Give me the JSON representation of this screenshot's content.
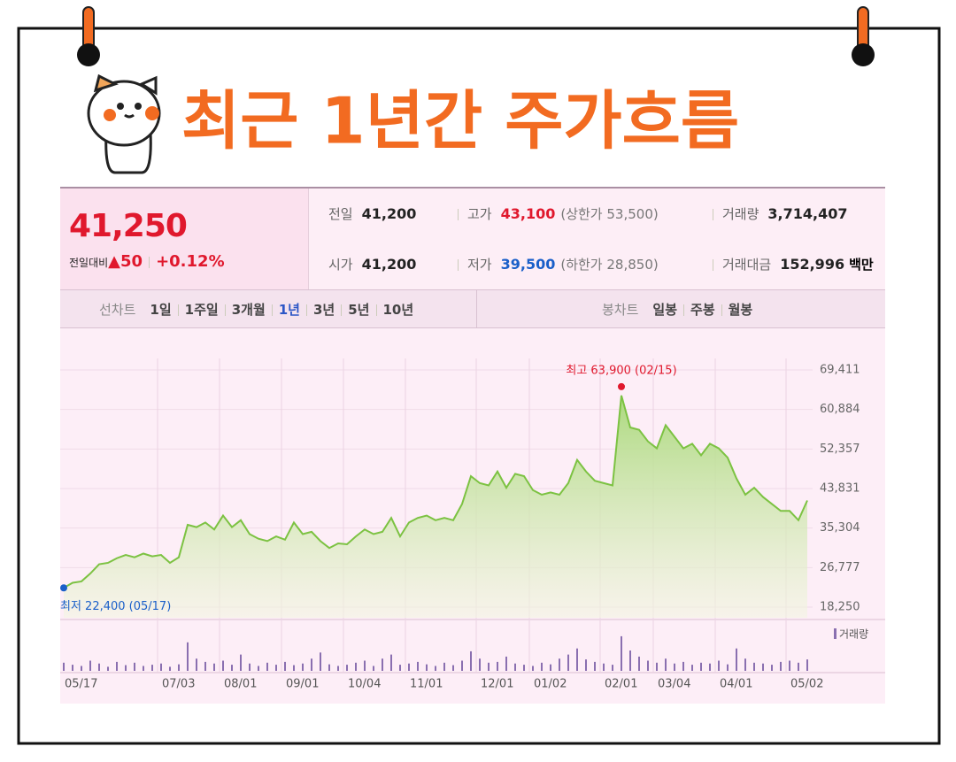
{
  "header": {
    "title": "최근 1년간 주가흐름"
  },
  "quote": {
    "price": "41,250",
    "change_label": "전일대비",
    "change": "▲50",
    "change_pct": "+0.12%",
    "stats": [
      {
        "label": "전일",
        "value": "41,200"
      },
      {
        "label": "고가",
        "value": "43,100",
        "note": "(상한가 53,500)",
        "color": "#e0182d"
      },
      {
        "label": "거래량",
        "value": "3,714,407"
      },
      {
        "label": "시가",
        "value": "41,200"
      },
      {
        "label": "저가",
        "value": "39,500",
        "note": "(하한가 28,850)",
        "color": "#1a5fc9"
      },
      {
        "label": "거래대금",
        "value": "152,996",
        "unit": "백만"
      }
    ]
  },
  "tabs": {
    "line": {
      "label": "선차트",
      "options": [
        "1일",
        "1주일",
        "3개월",
        "1년",
        "3년",
        "5년",
        "10년"
      ],
      "selected": "1년"
    },
    "candle": {
      "label": "봉차트",
      "options": [
        "일봉",
        "주봉",
        "월봉"
      ]
    }
  },
  "chart_data": [
    {
      "type": "area",
      "categories": [
        "05/17",
        null,
        null,
        null,
        null,
        null,
        null,
        null,
        null,
        null,
        null,
        "07/03",
        null,
        null,
        null,
        null,
        null,
        null,
        "08/01",
        null,
        null,
        null,
        null,
        null,
        null,
        "09/01",
        null,
        null,
        null,
        null,
        null,
        null,
        "10/04",
        null,
        null,
        null,
        null,
        null,
        null,
        "11/01",
        null,
        null,
        null,
        null,
        null,
        null,
        null,
        "12/01",
        null,
        null,
        null,
        null,
        null,
        "01/02",
        null,
        null,
        null,
        null,
        null,
        null,
        null,
        "02/01",
        null,
        null,
        null,
        null,
        null,
        "03/04",
        null,
        null,
        null,
        null,
        null,
        null,
        "04/01",
        null,
        null,
        null,
        null,
        null,
        null,
        null,
        "05/02",
        null,
        null
      ],
      "values": [
        22400,
        23500,
        23800,
        25500,
        27500,
        27800,
        28800,
        29500,
        29000,
        29800,
        29200,
        29500,
        27800,
        29000,
        36000,
        35500,
        36500,
        35000,
        38000,
        35500,
        37000,
        34000,
        33000,
        32500,
        33500,
        32800,
        36500,
        34000,
        34500,
        32500,
        31000,
        32000,
        31800,
        33500,
        35000,
        34000,
        34500,
        37500,
        33500,
        36500,
        37500,
        38000,
        37000,
        37500,
        37000,
        40500,
        46500,
        45000,
        44500,
        47500,
        44000,
        47000,
        46500,
        43500,
        42500,
        43000,
        42500,
        45000,
        50000,
        47500,
        45500,
        45000,
        44500,
        63900,
        57000,
        56500,
        54000,
        52500,
        57500,
        55000,
        52500,
        53500,
        51000,
        53500,
        52500,
        50500,
        46000,
        42500,
        44000,
        42000,
        40500,
        39000,
        39000,
        37000,
        41250
      ],
      "color": "#7cc242",
      "ylim": [
        15960,
        73800
      ],
      "yticks": [
        {
          "value": 18250,
          "label": "18,250"
        },
        {
          "value": 26777,
          "label": "26,777"
        },
        {
          "value": 35304,
          "label": "35,304"
        },
        {
          "value": 43831,
          "label": "43,831"
        },
        {
          "value": 52357,
          "label": "52,357"
        },
        {
          "value": 60884,
          "label": "60,884"
        },
        {
          "value": 69411,
          "label": "69,411"
        }
      ],
      "grid": true,
      "max_label": "최고 63,900 (02/15)",
      "min_label": "최저 22,400 (05/17)",
      "max_color": "#e0182d",
      "min_color": "#1a5fc9"
    },
    {
      "type": "bar",
      "legend": "거래량",
      "values": [
        20,
        15,
        12,
        25,
        18,
        10,
        22,
        14,
        20,
        12,
        15,
        18,
        10,
        16,
        70,
        30,
        22,
        18,
        25,
        15,
        40,
        18,
        12,
        20,
        15,
        22,
        14,
        18,
        30,
        45,
        16,
        12,
        15,
        20,
        25,
        12,
        30,
        40,
        15,
        18,
        22,
        16,
        12,
        20,
        14,
        25,
        48,
        30,
        20,
        22,
        35,
        18,
        15,
        12,
        20,
        16,
        30,
        40,
        55,
        28,
        22,
        18,
        15,
        85,
        50,
        35,
        25,
        20,
        30,
        18,
        22,
        15,
        20,
        18,
        25,
        16,
        55,
        30,
        20,
        18,
        15,
        22,
        25,
        20,
        28
      ],
      "color": "#8a6fb0",
      "ylim": [
        0,
        100
      ]
    }
  ]
}
